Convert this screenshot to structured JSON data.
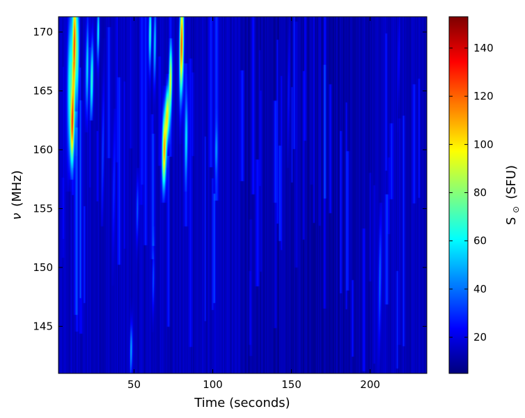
{
  "chart_data": {
    "type": "heatmap",
    "title": "",
    "xlabel": "Time (seconds)",
    "ylabel_symbol": "ν",
    "ylabel_unit": "(MHz)",
    "colorbar_label_symbol": "S",
    "colorbar_label_subscript": "⊙",
    "colorbar_label_unit": "(SFU)",
    "colormap": "jet",
    "xlim": [
      2,
      236
    ],
    "ylim": [
      141,
      171.3
    ],
    "clim": [
      5,
      153
    ],
    "x_ticks": [
      50,
      100,
      150,
      200
    ],
    "y_ticks": [
      145,
      150,
      155,
      160,
      165,
      170
    ],
    "colorbar_ticks": [
      20,
      40,
      60,
      80,
      100,
      120,
      140
    ],
    "background_level": 14,
    "bursts": [
      {
        "t": 9,
        "nu_min": 158,
        "nu_max": 171.3,
        "nu_peak": 166,
        "width_s": 1.6,
        "peak": 65
      },
      {
        "t": 12,
        "nu_min": 160,
        "nu_max": 171.3,
        "nu_peak": 169,
        "width_s": 1.2,
        "peak": 122
      },
      {
        "t": 10.5,
        "nu_min": 159,
        "nu_max": 166,
        "nu_peak": 162,
        "width_s": 1.2,
        "peak": 100
      },
      {
        "t": 14,
        "nu_min": 161,
        "nu_max": 171.3,
        "nu_peak": 168,
        "width_s": 1.0,
        "peak": 60
      },
      {
        "t": 20,
        "nu_min": 163,
        "nu_max": 171.3,
        "nu_peak": 167,
        "width_s": 1.0,
        "peak": 55
      },
      {
        "t": 23,
        "nu_min": 164,
        "nu_max": 171.3,
        "nu_peak": 166,
        "width_s": 0.9,
        "peak": 70
      },
      {
        "t": 27,
        "nu_min": 166,
        "nu_max": 171.3,
        "nu_peak": 170,
        "width_s": 0.8,
        "peak": 60
      },
      {
        "t": 30,
        "nu_min": 155,
        "nu_max": 168,
        "nu_peak": 160,
        "width_s": 0.8,
        "peak": 35
      },
      {
        "t": 37,
        "nu_min": 150,
        "nu_max": 162,
        "nu_peak": 157,
        "width_s": 0.8,
        "peak": 30
      },
      {
        "t": 48,
        "nu_min": 141,
        "nu_max": 146,
        "nu_peak": 143,
        "width_s": 0.8,
        "peak": 50
      },
      {
        "t": 52,
        "nu_min": 151,
        "nu_max": 157,
        "nu_peak": 155,
        "width_s": 0.8,
        "peak": 38
      },
      {
        "t": 60,
        "nu_min": 165,
        "nu_max": 171.3,
        "nu_peak": 170,
        "width_s": 0.9,
        "peak": 65
      },
      {
        "t": 63,
        "nu_min": 164,
        "nu_max": 171.3,
        "nu_peak": 169,
        "width_s": 0.8,
        "peak": 55
      },
      {
        "t": 62,
        "nu_min": 146,
        "nu_max": 152,
        "nu_peak": 149,
        "width_s": 0.8,
        "peak": 35
      },
      {
        "t": 69,
        "nu_min": 157,
        "nu_max": 164,
        "nu_peak": 160,
        "width_s": 1.3,
        "peak": 112
      },
      {
        "t": 71,
        "nu_min": 160,
        "nu_max": 165,
        "nu_peak": 163,
        "width_s": 1.2,
        "peak": 95
      },
      {
        "t": 73,
        "nu_min": 162,
        "nu_max": 168,
        "nu_peak": 166,
        "width_s": 1.0,
        "peak": 80
      },
      {
        "t": 80,
        "nu_min": 162,
        "nu_max": 171.3,
        "nu_peak": 169,
        "width_s": 1.2,
        "peak": 125
      },
      {
        "t": 83,
        "nu_min": 158,
        "nu_max": 165,
        "nu_peak": 161,
        "width_s": 1.0,
        "peak": 45
      },
      {
        "t": 102,
        "nu_min": 158,
        "nu_max": 162,
        "nu_peak": 160,
        "width_s": 0.9,
        "peak": 30
      },
      {
        "t": 148,
        "nu_min": 160,
        "nu_max": 171.3,
        "nu_peak": 165,
        "width_s": 0.7,
        "peak": 28
      },
      {
        "t": 206,
        "nu_min": 142,
        "nu_max": 154,
        "nu_peak": 149,
        "width_s": 0.9,
        "peak": 40
      },
      {
        "t": 218,
        "nu_min": 163,
        "nu_max": 171.3,
        "nu_peak": 168,
        "width_s": 0.7,
        "peak": 28
      }
    ]
  }
}
